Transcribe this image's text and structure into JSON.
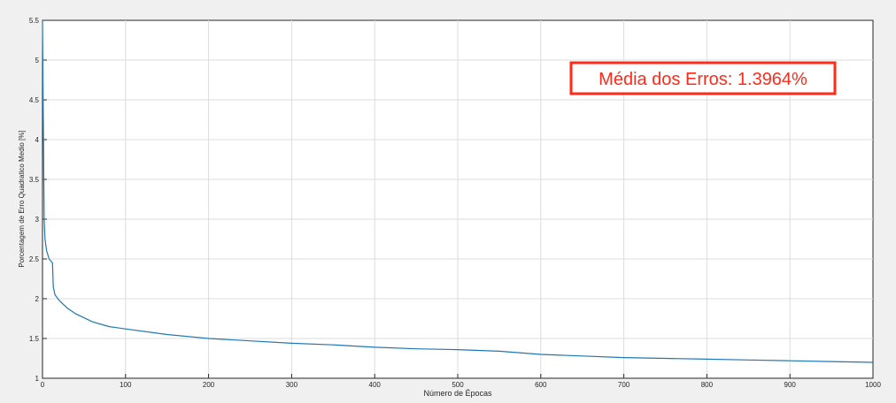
{
  "chart_data": {
    "type": "line",
    "title": "",
    "xlabel": "Número de Épocas",
    "ylabel": "Porcentagem de Erro Quadratico Medio [%]",
    "xlim": [
      0,
      1000
    ],
    "ylim": [
      1,
      5.5
    ],
    "x_ticks": [
      "0",
      "100",
      "200",
      "300",
      "400",
      "500",
      "600",
      "700",
      "800",
      "900",
      "1000"
    ],
    "y_ticks": [
      "1",
      "1.5",
      "2",
      "2.5",
      "3",
      "3.5",
      "4",
      "4.5",
      "5",
      "5.5"
    ],
    "grid": true,
    "series": [
      {
        "color": "#1f77b4",
        "x": [
          0,
          1,
          2,
          3,
          5,
          8,
          12,
          13,
          15,
          20,
          30,
          40,
          60,
          80,
          100,
          150,
          200,
          250,
          300,
          350,
          400,
          450,
          500,
          550,
          600,
          650,
          700,
          750,
          800,
          850,
          900,
          950,
          1000
        ],
        "y": [
          5.5,
          4.2,
          3.0,
          2.75,
          2.6,
          2.5,
          2.45,
          2.15,
          2.05,
          1.98,
          1.88,
          1.81,
          1.71,
          1.65,
          1.62,
          1.55,
          1.5,
          1.47,
          1.44,
          1.42,
          1.39,
          1.37,
          1.36,
          1.34,
          1.3,
          1.28,
          1.26,
          1.25,
          1.24,
          1.23,
          1.22,
          1.21,
          1.2
        ]
      }
    ],
    "annotation": {
      "text": "Média dos Erros: 1.3964%",
      "color": "#ff2a1a"
    }
  }
}
